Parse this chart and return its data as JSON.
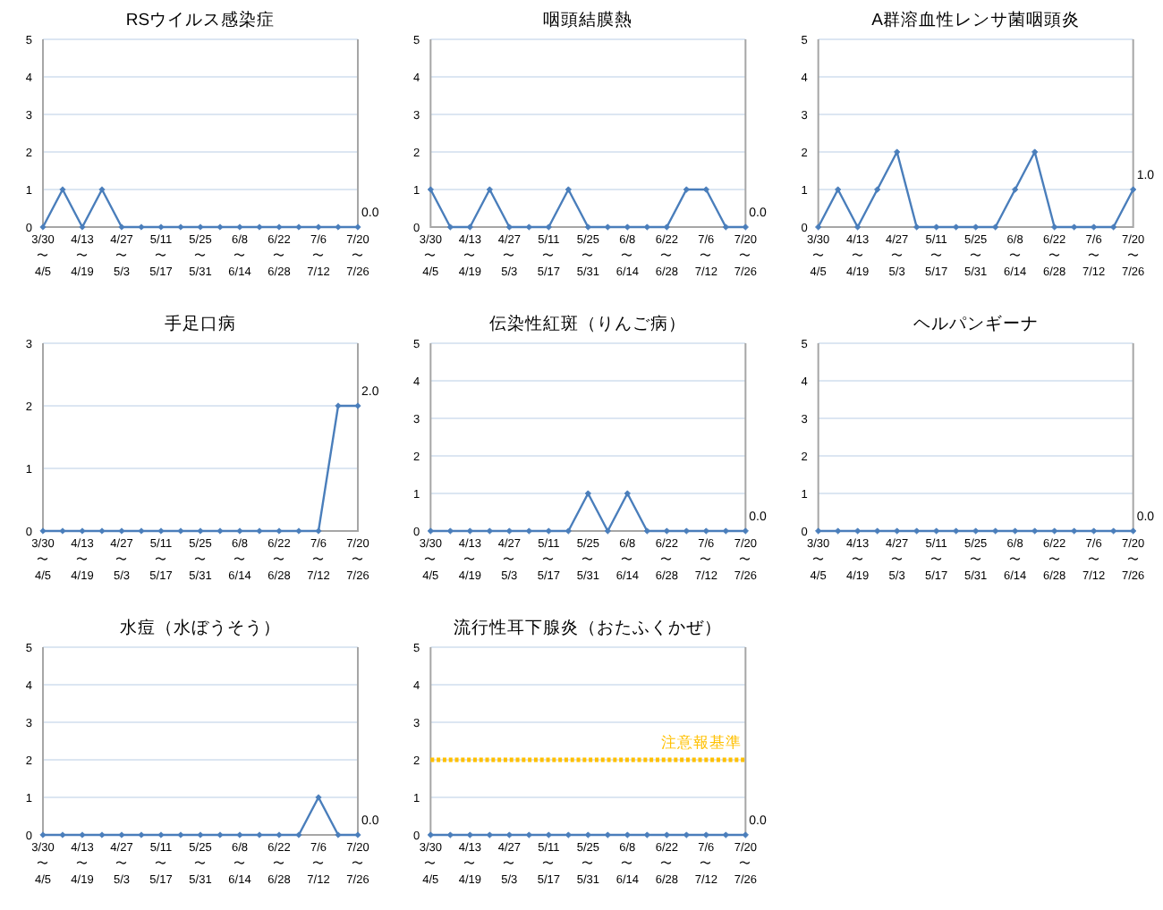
{
  "chart_data": [
    {
      "type": "line",
      "title": "RSウイルス感染症",
      "categories": [
        "3/30\n〜\n4/5",
        null,
        "4/13\n〜\n4/19",
        null,
        "4/27\n〜\n5/3",
        null,
        "5/11\n〜\n5/17",
        null,
        "5/25\n〜\n5/31",
        null,
        "6/8\n〜\n6/14",
        null,
        "6/22\n〜\n6/28",
        null,
        "7/6\n〜\n7/12",
        null,
        "7/20\n〜\n7/26"
      ],
      "series": [
        {
          "color": "#4a7ebb",
          "values": [
            0,
            1,
            0,
            1,
            0,
            0,
            0,
            0,
            0,
            0,
            0,
            0,
            0,
            0,
            0,
            0,
            0
          ],
          "value_labels": [
            null,
            null,
            null,
            null,
            null,
            null,
            null,
            null,
            null,
            null,
            null,
            null,
            null,
            null,
            null,
            null,
            "0.0"
          ]
        }
      ],
      "ylim": [
        0,
        5
      ],
      "yticks": [
        0,
        1,
        2,
        3,
        4,
        5
      ],
      "grid": "y",
      "marker": "diamond"
    },
    {
      "type": "line",
      "title": "咽頭結膜熱",
      "categories": [
        "3/30\n〜\n4/5",
        null,
        "4/13\n〜\n4/19",
        null,
        "4/27\n〜\n5/3",
        null,
        "5/11\n〜\n5/17",
        null,
        "5/25\n〜\n5/31",
        null,
        "6/8\n〜\n6/14",
        null,
        "6/22\n〜\n6/28",
        null,
        "7/6\n〜\n7/12",
        null,
        "7/20\n〜\n7/26"
      ],
      "series": [
        {
          "color": "#4a7ebb",
          "values": [
            1,
            0,
            0,
            1,
            0,
            0,
            0,
            1,
            0,
            0,
            0,
            0,
            0,
            1,
            1,
            0,
            0
          ],
          "value_labels": [
            null,
            null,
            null,
            null,
            null,
            null,
            null,
            null,
            null,
            null,
            null,
            null,
            null,
            null,
            null,
            null,
            "0.0"
          ]
        }
      ],
      "ylim": [
        0,
        5
      ],
      "yticks": [
        0,
        1,
        2,
        3,
        4,
        5
      ],
      "grid": "y",
      "marker": "diamond"
    },
    {
      "type": "line",
      "title": "A群溶血性レンサ菌咽頭炎",
      "categories": [
        "3/30\n〜\n4/5",
        null,
        "4/13\n〜\n4/19",
        null,
        "4/27\n〜\n5/3",
        null,
        "5/11\n〜\n5/17",
        null,
        "5/25\n〜\n5/31",
        null,
        "6/8\n〜\n6/14",
        null,
        "6/22\n〜\n6/28",
        null,
        "7/6\n〜\n7/12",
        null,
        "7/20\n〜\n7/26"
      ],
      "series": [
        {
          "color": "#4a7ebb",
          "values": [
            0,
            1,
            0,
            1,
            2,
            0,
            0,
            0,
            0,
            0,
            1,
            2,
            0,
            0,
            0,
            0,
            1
          ],
          "value_labels": [
            null,
            null,
            null,
            null,
            null,
            null,
            null,
            null,
            null,
            null,
            null,
            null,
            null,
            null,
            null,
            null,
            "1.0"
          ]
        }
      ],
      "ylim": [
        0,
        5
      ],
      "yticks": [
        0,
        1,
        2,
        3,
        4,
        5
      ],
      "grid": "y",
      "marker": "diamond"
    },
    {
      "type": "line",
      "title": "手足口病",
      "categories": [
        "3/30\n〜\n4/5",
        null,
        "4/13\n〜\n4/19",
        null,
        "4/27\n〜\n5/3",
        null,
        "5/11\n〜\n5/17",
        null,
        "5/25\n〜\n5/31",
        null,
        "6/8\n〜\n6/14",
        null,
        "6/22\n〜\n6/28",
        null,
        "7/6\n〜\n7/12",
        null,
        "7/20\n〜\n7/26"
      ],
      "series": [
        {
          "color": "#4a7ebb",
          "values": [
            0,
            0,
            0,
            0,
            0,
            0,
            0,
            0,
            0,
            0,
            0,
            0,
            0,
            0,
            0,
            2,
            2
          ],
          "value_labels": [
            null,
            null,
            null,
            null,
            null,
            null,
            null,
            null,
            null,
            null,
            null,
            null,
            null,
            null,
            null,
            null,
            "2.0"
          ]
        }
      ],
      "ylim": [
        0,
        3
      ],
      "yticks": [
        0,
        1,
        2,
        3
      ],
      "grid": "y",
      "marker": "diamond"
    },
    {
      "type": "line",
      "title": "伝染性紅斑（りんご病）",
      "categories": [
        "3/30\n〜\n4/5",
        null,
        "4/13\n〜\n4/19",
        null,
        "4/27\n〜\n5/3",
        null,
        "5/11\n〜\n5/17",
        null,
        "5/25\n〜\n5/31",
        null,
        "6/8\n〜\n6/14",
        null,
        "6/22\n〜\n6/28",
        null,
        "7/6\n〜\n7/12",
        null,
        "7/20\n〜\n7/26"
      ],
      "series": [
        {
          "color": "#4a7ebb",
          "values": [
            0,
            0,
            0,
            0,
            0,
            0,
            0,
            0,
            1,
            0,
            1,
            0,
            0,
            0,
            0,
            0,
            0
          ],
          "value_labels": [
            null,
            null,
            null,
            null,
            null,
            null,
            null,
            null,
            null,
            null,
            null,
            null,
            null,
            null,
            null,
            null,
            "0.0"
          ]
        }
      ],
      "ylim": [
        0,
        5
      ],
      "yticks": [
        0,
        1,
        2,
        3,
        4,
        5
      ],
      "grid": "y",
      "marker": "diamond"
    },
    {
      "type": "line",
      "title": "ヘルパンギーナ",
      "categories": [
        "3/30\n〜\n4/5",
        null,
        "4/13\n〜\n4/19",
        null,
        "4/27\n〜\n5/3",
        null,
        "5/11\n〜\n5/17",
        null,
        "5/25\n〜\n5/31",
        null,
        "6/8\n〜\n6/14",
        null,
        "6/22\n〜\n6/28",
        null,
        "7/6\n〜\n7/12",
        null,
        "7/20\n〜\n7/26"
      ],
      "series": [
        {
          "color": "#4a7ebb",
          "values": [
            0,
            0,
            0,
            0,
            0,
            0,
            0,
            0,
            0,
            0,
            0,
            0,
            0,
            0,
            0,
            0,
            0
          ],
          "value_labels": [
            null,
            null,
            null,
            null,
            null,
            null,
            null,
            null,
            null,
            null,
            null,
            null,
            null,
            null,
            null,
            null,
            "0.0"
          ]
        }
      ],
      "ylim": [
        0,
        5
      ],
      "yticks": [
        0,
        1,
        2,
        3,
        4,
        5
      ],
      "grid": "y",
      "marker": "diamond"
    },
    {
      "type": "line",
      "title": "水痘（水ぼうそう）",
      "categories": [
        "3/30\n〜\n4/5",
        null,
        "4/13\n〜\n4/19",
        null,
        "4/27\n〜\n5/3",
        null,
        "5/11\n〜\n5/17",
        null,
        "5/25\n〜\n5/31",
        null,
        "6/8\n〜\n6/14",
        null,
        "6/22\n〜\n6/28",
        null,
        "7/6\n〜\n7/12",
        null,
        "7/20\n〜\n7/26"
      ],
      "series": [
        {
          "color": "#4a7ebb",
          "values": [
            0,
            0,
            0,
            0,
            0,
            0,
            0,
            0,
            0,
            0,
            0,
            0,
            0,
            0,
            1,
            0,
            0
          ],
          "value_labels": [
            null,
            null,
            null,
            null,
            null,
            null,
            null,
            null,
            null,
            null,
            null,
            null,
            null,
            null,
            null,
            null,
            "0.0"
          ]
        }
      ],
      "ylim": [
        0,
        5
      ],
      "yticks": [
        0,
        1,
        2,
        3,
        4,
        5
      ],
      "grid": "y",
      "marker": "diamond"
    },
    {
      "type": "line",
      "title": "流行性耳下腺炎（おたふくかぜ）",
      "categories": [
        "3/30\n〜\n4/5",
        null,
        "4/13\n〜\n4/19",
        null,
        "4/27\n〜\n5/3",
        null,
        "5/11\n〜\n5/17",
        null,
        "5/25\n〜\n5/31",
        null,
        "6/8\n〜\n6/14",
        null,
        "6/22\n〜\n6/28",
        null,
        "7/6\n〜\n7/12",
        null,
        "7/20\n〜\n7/26"
      ],
      "series": [
        {
          "color": "#4a7ebb",
          "values": [
            0,
            0,
            0,
            0,
            0,
            0,
            0,
            0,
            0,
            0,
            0,
            0,
            0,
            0,
            0,
            0,
            0
          ],
          "value_labels": [
            null,
            null,
            null,
            null,
            null,
            null,
            null,
            null,
            null,
            null,
            null,
            null,
            null,
            null,
            null,
            null,
            "0.0"
          ]
        }
      ],
      "ylim": [
        0,
        5
      ],
      "yticks": [
        0,
        1,
        2,
        3,
        4,
        5
      ],
      "grid": "y",
      "marker": "diamond",
      "ref_lines": [
        {
          "axis": "y",
          "value": 2,
          "label": "注意報基準",
          "color": "#ffc000",
          "line_style": "dotted"
        }
      ]
    }
  ]
}
